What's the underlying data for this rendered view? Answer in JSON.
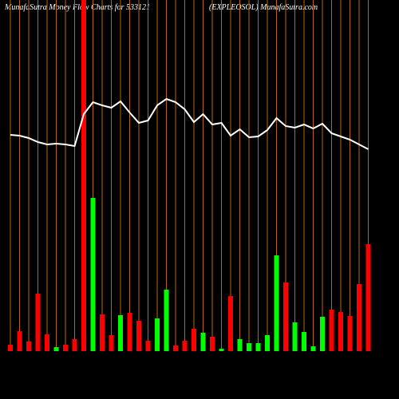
{
  "chart_data": {
    "type": "bar",
    "title": "MunafaSutra  Money Flow  Charts for 533121",
    "subtitle": "(EXPLEOSOL) MunafaSutra.com",
    "categories": [
      null,
      null,
      null,
      null,
      null,
      null,
      null,
      null,
      null,
      null,
      null,
      null,
      null,
      null,
      null,
      null,
      null,
      null,
      null,
      null,
      null,
      null,
      null,
      null,
      null,
      null,
      null,
      null,
      null,
      null,
      null,
      null,
      null,
      null,
      null,
      null,
      null,
      null,
      null,
      null
    ],
    "values": [
      8,
      25,
      12,
      72,
      21,
      5,
      8,
      15,
      440,
      192,
      46,
      20,
      45,
      48,
      38,
      13,
      41,
      77,
      7,
      13,
      28,
      23,
      18,
      3,
      69,
      15,
      10,
      10,
      20,
      120,
      86,
      36,
      24,
      6,
      43,
      52,
      49,
      44,
      84,
      134
    ],
    "colors": [
      "#ff0000",
      "#ff0000",
      "#ff0000",
      "#ff0000",
      "#ff0000",
      "#00ff00",
      "#ff0000",
      "#ff0000",
      "#ff0000",
      "#00ff00",
      "#ff0000",
      "#ff0000",
      "#00ff00",
      "#ff0000",
      "#ff0000",
      "#ff0000",
      "#00ff00",
      "#00ff00",
      "#ff0000",
      "#ff0000",
      "#ff0000",
      "#00ff00",
      "#ff0000",
      "#00ff00",
      "#ff0000",
      "#00ff00",
      "#00ff00",
      "#00ff00",
      "#00ff00",
      "#00ff00",
      "#ff0000",
      "#00ff00",
      "#00ff00",
      "#00ff00",
      "#00ff00",
      "#ff0000",
      "#ff0000",
      "#ff0000",
      "#ff0000",
      "#ff0000"
    ],
    "line": {
      "color": "#ffffff",
      "values": [
        271,
        270,
        267,
        262,
        259,
        260,
        259,
        257,
        297,
        312,
        308,
        305,
        313,
        299,
        286,
        289,
        308,
        316,
        312,
        303,
        287,
        297,
        284,
        286,
        270,
        278,
        268,
        269,
        277,
        292,
        282,
        280,
        284,
        279,
        285,
        273,
        269,
        265,
        259,
        253
      ]
    },
    "ylim": [
      0,
      440
    ],
    "grid_color": "#b8660b"
  }
}
